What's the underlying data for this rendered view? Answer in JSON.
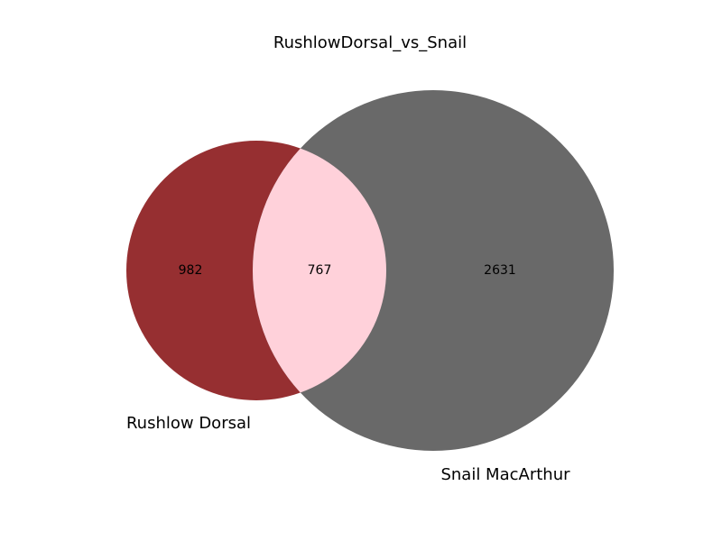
{
  "title": "RushlowDorsal_vs_Snail",
  "sets": [
    {
      "name": "Rushlow Dorsal",
      "color": "#962f31"
    },
    {
      "name": "Snail MacArthur",
      "color": "#696969"
    }
  ],
  "intersection_color": "#ffd1da",
  "counts": {
    "only_a": "982",
    "both": "767",
    "only_b": "2631"
  }
}
